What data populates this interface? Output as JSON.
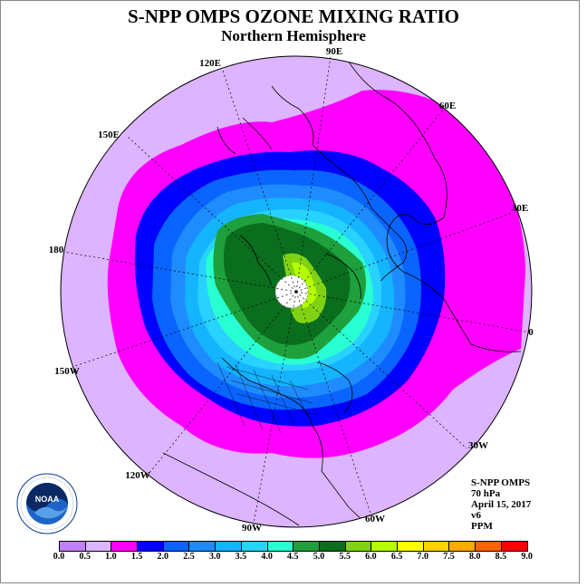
{
  "title": "S-NPP OMPS OZONE MIXING RATIO",
  "subtitle": "Northern Hemisphere",
  "info": {
    "product": "S-NPP OMPS",
    "level": "70 hPa",
    "date": "April 15, 2017",
    "version": "v6",
    "units": "PPM"
  },
  "longitude_labels": [
    "90E",
    "60E",
    "30E",
    "0",
    "30W",
    "60W",
    "90W",
    "120W",
    "150W",
    "180",
    "150E",
    "120E"
  ],
  "logo": {
    "text": "NOAA",
    "icon": "noaa-logo"
  },
  "colorbar": {
    "ticks": [
      "0.0",
      "0.5",
      "1.0",
      "1.5",
      "2.0",
      "2.5",
      "3.0",
      "3.5",
      "4.0",
      "4.5",
      "5.0",
      "5.5",
      "6.0",
      "6.5",
      "7.0",
      "7.5",
      "8.0",
      "8.5",
      "9.0"
    ],
    "colors": [
      "#c080ff",
      "#dcb4ff",
      "#ff00ff",
      "#0000ff",
      "#0a64ff",
      "#1e8cff",
      "#14b4ff",
      "#28d2ff",
      "#28ffd2",
      "#1ea03c",
      "#0a6e1e",
      "#82d214",
      "#b4ff00",
      "#ffff00",
      "#ffd200",
      "#ffaa00",
      "#ff6400",
      "#ff0000",
      "#8c5a3c"
    ]
  }
}
